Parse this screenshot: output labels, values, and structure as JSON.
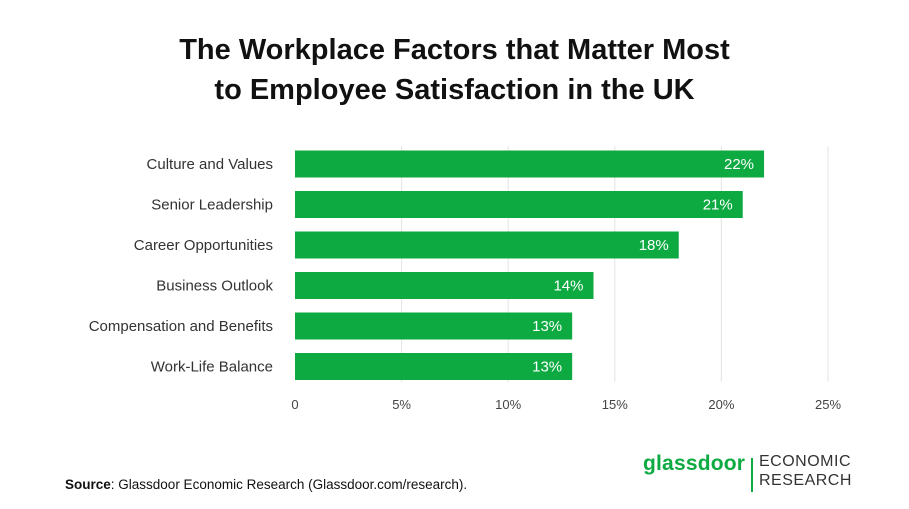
{
  "title_line1": "The Workplace Factors that Matter Most",
  "title_line2": "to Employee Satisfaction in the UK",
  "source_label": "Source",
  "source_text": ": Glassdoor Economic Research (Glassdoor.com/research).",
  "brand": {
    "wordmark": "glassdoor",
    "line1": "ECONOMIC",
    "line2": "RESEARCH"
  },
  "colors": {
    "bar": "#0caa41",
    "grid": "#e3e3e3",
    "brand": "#0caa41"
  },
  "chart_data": {
    "type": "bar",
    "orientation": "horizontal",
    "title": "The Workplace Factors that Matter Most to Employee Satisfaction in the UK",
    "categories": [
      "Culture and Values",
      "Senior Leadership",
      "Career Opportunities",
      "Business Outlook",
      "Compensation and Benefits",
      "Work-Life Balance"
    ],
    "values": [
      22,
      21,
      18,
      14,
      13,
      13
    ],
    "value_labels": [
      "22%",
      "21%",
      "18%",
      "14%",
      "13%",
      "13%"
    ],
    "xlim": [
      0,
      25
    ],
    "xticks": [
      0,
      5,
      10,
      15,
      20,
      25
    ],
    "xtick_labels": [
      "0",
      "5%",
      "10%",
      "15%",
      "20%",
      "25%"
    ],
    "xlabel": "",
    "ylabel": "",
    "grid": true,
    "legend": "none"
  }
}
